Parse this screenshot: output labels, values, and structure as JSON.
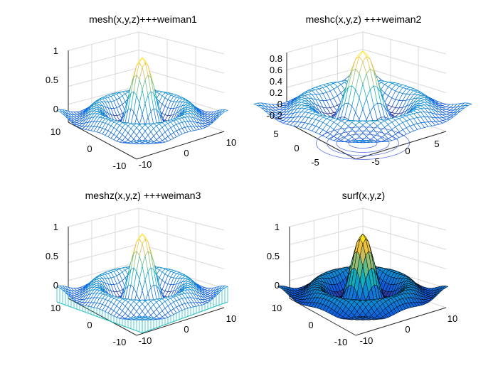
{
  "chart_data": [
    {
      "type": "surface",
      "style": "mesh",
      "title": "mesh(x,y,z)+++weiman1",
      "function": "z = sin(r)/r, r = sqrt(x^2+y^2)",
      "x_range": [
        -10,
        10
      ],
      "y_range": [
        -10,
        10
      ],
      "zlim": [
        -0.2,
        1
      ],
      "xticks": [
        "-10",
        "0",
        "10"
      ],
      "yticks": [
        "-10",
        "0",
        "10"
      ],
      "zticks": [
        "0",
        "0.5",
        "1"
      ],
      "grid": true,
      "colormap": "parula"
    },
    {
      "type": "surface",
      "style": "meshc",
      "title": "meshc(x,y,z) +++weiman2",
      "function": "z = sin(r)/r, r = sqrt(x^2+y^2)",
      "x_range": [
        -7.5,
        7.5
      ],
      "y_range": [
        -7.5,
        7.5
      ],
      "zlim": [
        -0.25,
        1
      ],
      "xticks": [
        "-5",
        "0",
        "5"
      ],
      "yticks": [
        "-5",
        "0",
        "5"
      ],
      "zticks": [
        "-0.2",
        "0",
        "0.2",
        "0.4",
        "0.6",
        "0.8"
      ],
      "grid": true,
      "colormap": "parula",
      "contour_below": true
    },
    {
      "type": "surface",
      "style": "meshz",
      "title": "meshz(x,y,z) +++weiman3",
      "function": "z = sin(r)/r, r = sqrt(x^2+y^2)",
      "x_range": [
        -10,
        10
      ],
      "y_range": [
        -10,
        10
      ],
      "zlim": [
        -0.2,
        1
      ],
      "xticks": [
        "-10",
        "0",
        "10"
      ],
      "yticks": [
        "-10",
        "0",
        "10"
      ],
      "zticks": [
        "0",
        "0.5",
        "1"
      ],
      "grid": true,
      "colormap": "parula",
      "curtain": true
    },
    {
      "type": "surface",
      "style": "surf",
      "title": "surf(x,y,z)",
      "function": "z = sin(r)/r, r = sqrt(x^2+y^2)",
      "x_range": [
        -10,
        10
      ],
      "y_range": [
        -10,
        10
      ],
      "zlim": [
        -0.2,
        1
      ],
      "xticks": [
        "-10",
        "0",
        "10"
      ],
      "yticks": [
        "-10",
        "0",
        "10"
      ],
      "zticks": [
        "0",
        "0.5",
        "1"
      ],
      "grid": true,
      "colormap": "parula",
      "edgecolor": "#000000"
    }
  ]
}
